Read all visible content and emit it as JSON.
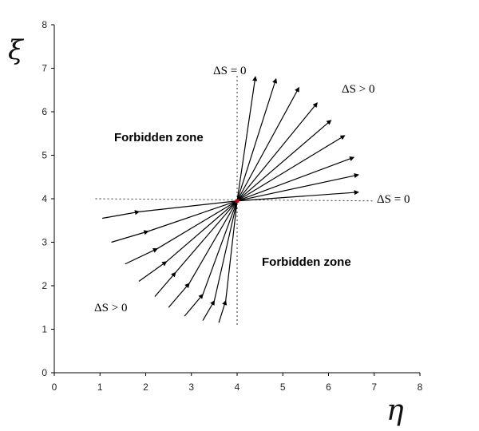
{
  "chart_data": {
    "type": "line",
    "xlabel": "η",
    "ylabel": "ξ",
    "xlim": [
      0,
      8
    ],
    "ylim": [
      0,
      8
    ],
    "xticks": [
      "0",
      "1",
      "2",
      "3",
      "4",
      "5",
      "6",
      "7",
      "8"
    ],
    "yticks": [
      "0",
      "1",
      "2",
      "3",
      "4",
      "5",
      "6",
      "7",
      "8"
    ],
    "grid": false,
    "center_point": {
      "x": 4,
      "y": 3.95,
      "color": "#cc0000"
    },
    "boundary_lines": [
      {
        "from": [
          0.9,
          4.0
        ],
        "to": [
          7.0,
          3.95
        ]
      },
      {
        "from": [
          4.0,
          1.1
        ],
        "to": [
          4.0,
          6.85
        ]
      }
    ],
    "outgoing_arrows": [
      {
        "end": [
          6.65,
          4.15
        ]
      },
      {
        "end": [
          6.65,
          4.55
        ]
      },
      {
        "end": [
          6.55,
          4.95
        ]
      },
      {
        "end": [
          6.35,
          5.45
        ]
      },
      {
        "end": [
          6.05,
          5.8
        ]
      },
      {
        "end": [
          5.75,
          6.2
        ]
      },
      {
        "end": [
          5.35,
          6.55
        ]
      },
      {
        "end": [
          4.85,
          6.75
        ]
      },
      {
        "end": [
          4.4,
          6.8
        ]
      }
    ],
    "incoming_arrows": [
      {
        "start": [
          1.05,
          3.55
        ],
        "head": [
          1.85,
          3.7
        ]
      },
      {
        "start": [
          1.25,
          3.0
        ],
        "head": [
          2.05,
          3.25
        ]
      },
      {
        "start": [
          1.55,
          2.5
        ],
        "head": [
          2.25,
          2.85
        ]
      },
      {
        "start": [
          1.85,
          2.1
        ],
        "head": [
          2.45,
          2.55
        ]
      },
      {
        "start": [
          2.2,
          1.75
        ],
        "head": [
          2.65,
          2.3
        ]
      },
      {
        "start": [
          2.5,
          1.5
        ],
        "head": [
          2.95,
          2.05
        ]
      },
      {
        "start": [
          2.85,
          1.3
        ],
        "head": [
          3.25,
          1.8
        ]
      },
      {
        "start": [
          3.25,
          1.2
        ],
        "head": [
          3.5,
          1.65
        ]
      },
      {
        "start": [
          3.6,
          1.15
        ],
        "head": [
          3.75,
          1.65
        ]
      }
    ],
    "annotations": {
      "forbidden_upper_left": "Forbidden zone",
      "forbidden_lower_right": "Forbidden zone",
      "ds_zero_top": "ΔS = 0",
      "ds_zero_right": "ΔS = 0",
      "ds_positive_top": "ΔS > 0",
      "ds_positive_bottom": "ΔS > 0"
    }
  }
}
